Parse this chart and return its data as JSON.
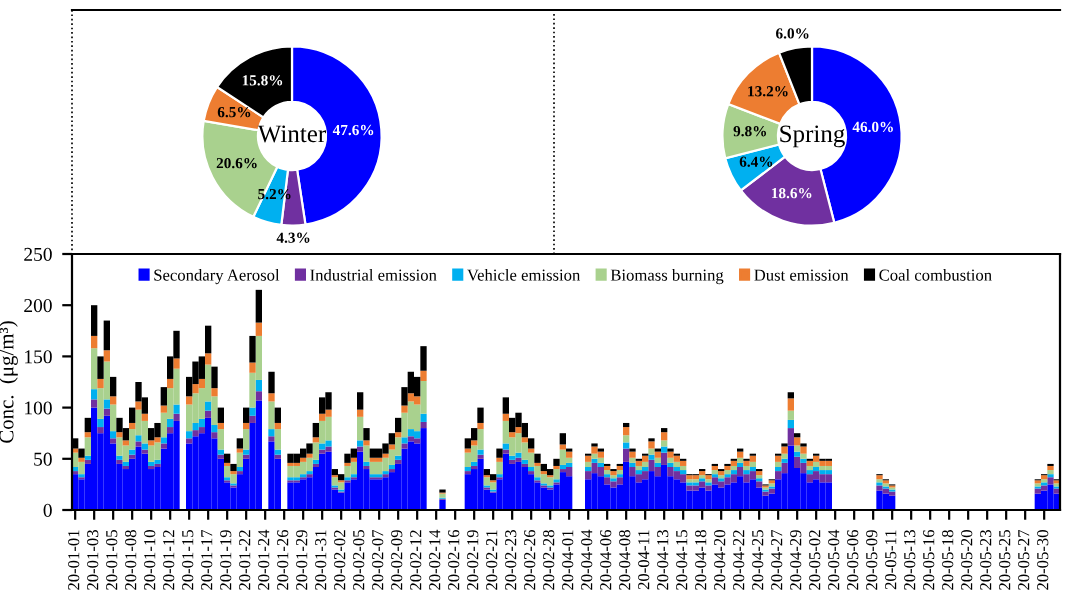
{
  "chart_data": [
    {
      "type": "donut",
      "title": "Winter",
      "categories": [
        null,
        null,
        null,
        null,
        null,
        null
      ],
      "values": [
        47.6,
        4.3,
        5.2,
        20.6,
        6.5,
        15.8
      ],
      "value_labels": [
        "47.6%",
        "4.3%",
        "5.2%",
        "20.6%",
        "6.5%",
        "15.8%"
      ],
      "colors": [
        "#0000ff",
        "#7030a0",
        "#00b0f0",
        "#a9d18e",
        "#ed7d31",
        "#000000"
      ]
    },
    {
      "type": "donut",
      "title": "Spring",
      "categories": [
        null,
        null,
        null,
        null,
        null,
        null
      ],
      "values": [
        46.0,
        18.6,
        6.4,
        9.8,
        13.2,
        6.0
      ],
      "value_labels": [
        "46.0%",
        "18.6%",
        "6.4%",
        "9.8%",
        "13.2%",
        "6.0%"
      ],
      "colors": [
        "#0000ff",
        "#7030a0",
        "#00b0f0",
        "#a9d18e",
        "#ed7d31",
        "#000000"
      ]
    },
    {
      "type": "bar",
      "stacked": true,
      "ylabel": "Conc.  (μg/m³)",
      "ylim": [
        0,
        250
      ],
      "yticks": [
        0,
        50,
        100,
        150,
        200,
        250
      ],
      "legend": "top",
      "grid": false,
      "categories": [
        "20-01-01",
        null,
        null,
        "20-01-03",
        null,
        null,
        "20-01-05",
        null,
        null,
        "20-01-08",
        null,
        null,
        "20-01-10",
        null,
        null,
        "20-01-12",
        null,
        null,
        "20-01-15",
        null,
        null,
        "20-01-17",
        null,
        null,
        "20-01-19",
        null,
        null,
        "20-01-22",
        null,
        null,
        "20-01-24",
        null,
        null,
        "20-01-26",
        null,
        null,
        "20-01-29",
        null,
        null,
        "20-01-31",
        null,
        null,
        "20-02-02",
        null,
        null,
        "20-02-05",
        null,
        null,
        "20-02-07",
        null,
        null,
        "20-02-09",
        null,
        null,
        "20-02-12",
        null,
        null,
        "20-02-14",
        null,
        null,
        "20-02-16",
        null,
        null,
        "20-02-19",
        null,
        null,
        "20-02-21",
        null,
        null,
        "20-02-23",
        null,
        null,
        "20-02-26",
        null,
        null,
        "20-02-28",
        null,
        null,
        "20-04-01",
        null,
        null,
        "20-04-04",
        null,
        null,
        "20-04-06",
        null,
        null,
        "20-04-08",
        null,
        null,
        "20-04-11",
        null,
        null,
        "20-04-13",
        null,
        null,
        "20-04-15",
        null,
        null,
        "20-04-18",
        null,
        null,
        "20-04-20",
        null,
        null,
        "20-04-22",
        null,
        null,
        "20-04-25",
        null,
        null,
        "20-04-27",
        null,
        null,
        "20-04-29",
        null,
        null,
        "20-05-02",
        null,
        null,
        "20-05-04",
        null,
        null,
        "20-05-06",
        null,
        null,
        "20-05-09",
        null,
        null,
        "20-05-11",
        null,
        null,
        "20-05-13",
        null,
        null,
        "20-05-16",
        null,
        null,
        "20-05-18",
        null,
        null,
        "20-05-20",
        null,
        null,
        "20-05-23",
        null,
        null,
        "20-05-25",
        null,
        null,
        "20-05-27",
        null,
        null,
        "20-05-30",
        null,
        null
      ],
      "series": [
        {
          "name": "Secondary Aerosol",
          "color": "#0000ff",
          "values": [
            35,
            30,
            45,
            100,
            75,
            92,
            65,
            45,
            40,
            50,
            62,
            55,
            40,
            42,
            60,
            75,
            87,
            null,
            65,
            72,
            75,
            90,
            70,
            50,
            27,
            22,
            35,
            50,
            85,
            107,
            null,
            67,
            50,
            null,
            27,
            27,
            30,
            32,
            42,
            55,
            57,
            20,
            17,
            27,
            30,
            57,
            40,
            30,
            30,
            32,
            37,
            45,
            60,
            67,
            65,
            80,
            null,
            null,
            10,
            null,
            null,
            null,
            35,
            40,
            50,
            20,
            17,
            30,
            55,
            45,
            47,
            42,
            35,
            27,
            22,
            20,
            25,
            37,
            33,
            null,
            null,
            30,
            36,
            33,
            25,
            22,
            25,
            47,
            33,
            27,
            30,
            38,
            33,
            44,
            33,
            30,
            27,
            19,
            19,
            22,
            19,
            25,
            22,
            25,
            27,
            33,
            27,
            30,
            22,
            14,
            16,
            30,
            36,
            63,
            41,
            36,
            27,
            30,
            27,
            27,
            null,
            null,
            null,
            null,
            null,
            null,
            null,
            19,
            16,
            14,
            null,
            null,
            null,
            null,
            null,
            null,
            null,
            null,
            null,
            null,
            null,
            null,
            null,
            null,
            null,
            null,
            null,
            null,
            null,
            null,
            null,
            null,
            16,
            19,
            25,
            16
          ]
        },
        {
          "name": "Industrial emission",
          "color": "#7030a0",
          "values": [
            3,
            2,
            4,
            8,
            6,
            7,
            5,
            4,
            3,
            4,
            5,
            4,
            3,
            3,
            5,
            6,
            7,
            null,
            5,
            6,
            6,
            7,
            6,
            4,
            2,
            2,
            3,
            4,
            7,
            9,
            null,
            5,
            4,
            null,
            2,
            2,
            2,
            3,
            3,
            4,
            5,
            2,
            1,
            2,
            2,
            5,
            3,
            2,
            2,
            3,
            3,
            4,
            5,
            5,
            5,
            6,
            null,
            null,
            1,
            null,
            null,
            null,
            3,
            3,
            4,
            2,
            1,
            2,
            4,
            4,
            4,
            3,
            3,
            2,
            2,
            2,
            2,
            3,
            9,
            null,
            null,
            8,
            10,
            9,
            7,
            6,
            7,
            13,
            9,
            8,
            8,
            11,
            9,
            12,
            9,
            8,
            8,
            5,
            5,
            6,
            5,
            7,
            6,
            7,
            8,
            9,
            8,
            8,
            6,
            4,
            5,
            8,
            10,
            17,
            11,
            10,
            8,
            8,
            8,
            8,
            null,
            null,
            null,
            null,
            null,
            null,
            null,
            5,
            5,
            4,
            null,
            null,
            null,
            null,
            null,
            null,
            null,
            null,
            null,
            null,
            null,
            null,
            null,
            null,
            null,
            null,
            null,
            null,
            null,
            null,
            null,
            null,
            5,
            5,
            7,
            5
          ]
        },
        {
          "name": "Vehicle emission",
          "color": "#00b0f0",
          "values": [
            4,
            3,
            4,
            10,
            8,
            9,
            7,
            4,
            4,
            5,
            6,
            6,
            4,
            4,
            6,
            8,
            9,
            null,
            7,
            7,
            8,
            9,
            7,
            5,
            3,
            2,
            4,
            5,
            8,
            11,
            null,
            7,
            5,
            null,
            3,
            3,
            3,
            3,
            4,
            6,
            6,
            2,
            2,
            3,
            3,
            6,
            4,
            3,
            3,
            3,
            4,
            4,
            6,
            7,
            7,
            8,
            null,
            null,
            1,
            null,
            null,
            null,
            4,
            4,
            5,
            2,
            2,
            3,
            6,
            4,
            5,
            4,
            4,
            3,
            2,
            2,
            3,
            4,
            4,
            null,
            null,
            4,
            4,
            4,
            3,
            3,
            3,
            6,
            4,
            4,
            4,
            5,
            4,
            6,
            4,
            4,
            4,
            3,
            3,
            3,
            3,
            3,
            3,
            3,
            4,
            4,
            4,
            4,
            3,
            2,
            2,
            4,
            4,
            8,
            5,
            4,
            4,
            4,
            4,
            4,
            null,
            null,
            null,
            null,
            null,
            null,
            null,
            3,
            2,
            2,
            null,
            null,
            null,
            null,
            null,
            null,
            null,
            null,
            null,
            null,
            null,
            null,
            null,
            null,
            null,
            null,
            null,
            null,
            null,
            null,
            null,
            null,
            2,
            3,
            3,
            2
          ]
        },
        {
          "name": "Biomass burning",
          "color": "#a9d18e",
          "values": [
            14,
            12,
            18,
            40,
            30,
            37,
            26,
            18,
            16,
            20,
            25,
            22,
            16,
            17,
            24,
            30,
            35,
            null,
            26,
            29,
            30,
            36,
            28,
            20,
            11,
            9,
            14,
            20,
            34,
            43,
            null,
            27,
            20,
            null,
            11,
            11,
            12,
            13,
            17,
            22,
            23,
            8,
            7,
            11,
            12,
            23,
            16,
            12,
            12,
            13,
            15,
            18,
            24,
            27,
            26,
            32,
            null,
            null,
            4,
            null,
            null,
            null,
            14,
            16,
            20,
            8,
            7,
            12,
            22,
            18,
            19,
            17,
            14,
            11,
            9,
            8,
            10,
            15,
            5,
            null,
            null,
            5,
            5,
            5,
            4,
            3,
            4,
            7,
            5,
            4,
            5,
            6,
            5,
            6,
            5,
            5,
            4,
            3,
            3,
            3,
            3,
            4,
            3,
            4,
            4,
            5,
            4,
            5,
            3,
            2,
            3,
            5,
            5,
            9,
            6,
            5,
            4,
            5,
            4,
            4,
            null,
            null,
            null,
            null,
            null,
            null,
            null,
            3,
            3,
            2,
            null,
            null,
            null,
            null,
            null,
            null,
            null,
            null,
            null,
            null,
            null,
            null,
            null,
            null,
            null,
            null,
            null,
            null,
            null,
            null,
            null,
            null,
            3,
            3,
            4,
            3
          ]
        },
        {
          "name": "Dust emission",
          "color": "#ed7d31",
          "values": [
            4,
            4,
            5,
            12,
            9,
            11,
            8,
            5,
            5,
            6,
            8,
            7,
            5,
            5,
            7,
            9,
            10,
            null,
            8,
            9,
            9,
            11,
            8,
            6,
            3,
            3,
            4,
            6,
            10,
            13,
            null,
            8,
            6,
            null,
            3,
            3,
            4,
            4,
            5,
            7,
            7,
            2,
            2,
            3,
            4,
            7,
            5,
            4,
            4,
            4,
            5,
            5,
            7,
            8,
            8,
            10,
            null,
            null,
            1,
            null,
            null,
            null,
            4,
            5,
            6,
            2,
            2,
            4,
            7,
            5,
            6,
            5,
            4,
            3,
            3,
            2,
            3,
            5,
            6,
            null,
            null,
            6,
            7,
            6,
            4,
            4,
            4,
            8,
            6,
            5,
            6,
            7,
            6,
            8,
            6,
            6,
            5,
            4,
            4,
            4,
            4,
            4,
            4,
            4,
            5,
            6,
            5,
            6,
            4,
            2,
            3,
            6,
            7,
            12,
            8,
            7,
            5,
            6,
            5,
            5,
            null,
            null,
            null,
            null,
            null,
            null,
            null,
            4,
            3,
            2,
            null,
            null,
            null,
            null,
            null,
            null,
            null,
            null,
            null,
            null,
            null,
            null,
            null,
            null,
            null,
            null,
            null,
            null,
            null,
            null,
            null,
            null,
            3,
            4,
            4,
            3
          ]
        },
        {
          "name": "Coal combustion",
          "color": "#000000",
          "values": [
            10,
            9,
            14,
            30,
            22,
            29,
            19,
            14,
            12,
            15,
            19,
            16,
            12,
            14,
            18,
            22,
            27,
            null,
            19,
            22,
            22,
            27,
            21,
            15,
            9,
            7,
            10,
            15,
            26,
            32,
            null,
            21,
            15,
            null,
            9,
            9,
            9,
            10,
            14,
            16,
            17,
            6,
            6,
            9,
            9,
            17,
            12,
            9,
            9,
            10,
            11,
            14,
            18,
            21,
            19,
            24,
            null,
            null,
            3,
            null,
            null,
            null,
            10,
            12,
            15,
            6,
            6,
            9,
            16,
            14,
            14,
            14,
            10,
            9,
            7,
            6,
            7,
            11,
            3,
            null,
            null,
            2,
            3,
            3,
            2,
            2,
            2,
            4,
            3,
            2,
            2,
            3,
            3,
            4,
            3,
            2,
            2,
            1,
            1,
            2,
            1,
            2,
            2,
            2,
            2,
            3,
            2,
            2,
            2,
            1,
            1,
            2,
            3,
            6,
            4,
            3,
            2,
            2,
            2,
            2,
            null,
            null,
            null,
            null,
            null,
            null,
            null,
            1,
            1,
            1,
            null,
            null,
            null,
            null,
            null,
            null,
            null,
            null,
            null,
            null,
            null,
            null,
            null,
            null,
            null,
            null,
            null,
            null,
            null,
            null,
            null,
            null,
            1,
            1,
            2,
            1
          ]
        }
      ]
    }
  ]
}
